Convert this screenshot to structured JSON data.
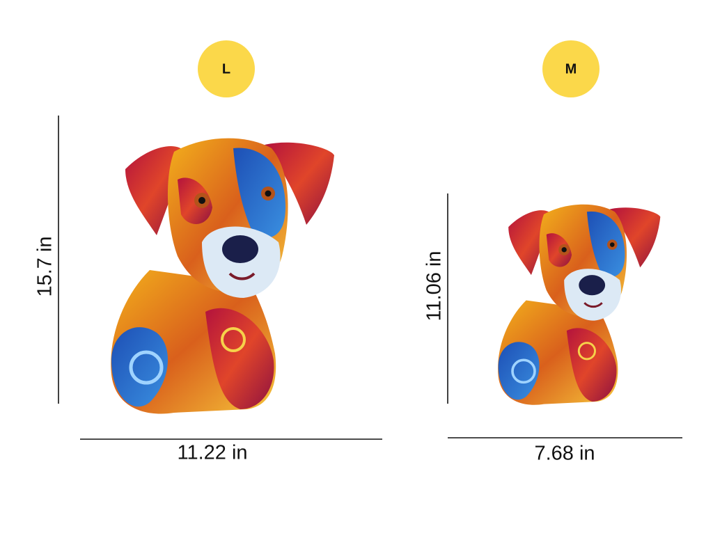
{
  "sizes": [
    {
      "badge": "L",
      "height": "15.7 in",
      "width": "11.22 in"
    },
    {
      "badge": "M",
      "height": "11.06 in",
      "width": "7.68 in"
    }
  ]
}
